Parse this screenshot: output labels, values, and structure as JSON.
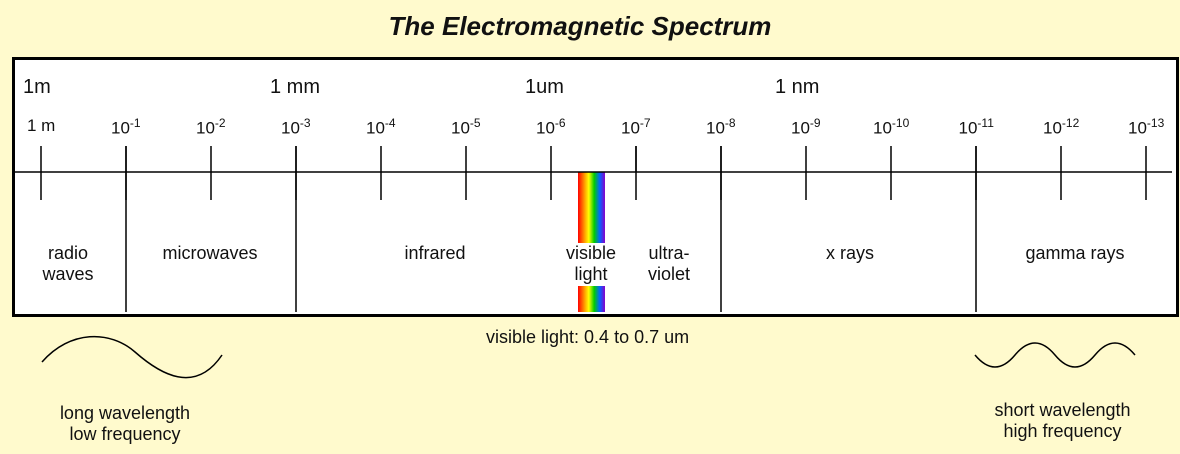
{
  "title": "The Electromagnetic Spectrum",
  "scale_labels": [
    "1m",
    "1 mm",
    "1um",
    "1 nm"
  ],
  "ticks": [
    {
      "base": "1 m",
      "exp": ""
    },
    {
      "base": "10",
      "exp": "-1"
    },
    {
      "base": "10",
      "exp": "-2"
    },
    {
      "base": "10",
      "exp": "-3"
    },
    {
      "base": "10",
      "exp": "-4"
    },
    {
      "base": "10",
      "exp": "-5"
    },
    {
      "base": "10",
      "exp": "-6"
    },
    {
      "base": "10",
      "exp": "-7"
    },
    {
      "base": "10",
      "exp": "-8"
    },
    {
      "base": "10",
      "exp": "-9"
    },
    {
      "base": "10",
      "exp": "-10"
    },
    {
      "base": "10",
      "exp": "-11"
    },
    {
      "base": "10",
      "exp": "-12"
    },
    {
      "base": "10",
      "exp": "-13"
    }
  ],
  "regions": {
    "radio": "radio\nwaves",
    "microwaves": "microwaves",
    "infrared": "infrared",
    "visible": "visible\nlight",
    "ultraviolet": "ultra-\nviolet",
    "xrays": "x rays",
    "gamma": "gamma rays"
  },
  "visible_note": "visible light: 0.4 to 0.7 um",
  "long_caption": "long wavelength\nlow frequency",
  "short_caption": "short wavelength\nhigh frequency",
  "colors": {
    "background": "#fffacd",
    "rainbow": [
      "#ff0000",
      "#ff8000",
      "#ffff00",
      "#00cc00",
      "#0066ff",
      "#8800cc"
    ]
  }
}
